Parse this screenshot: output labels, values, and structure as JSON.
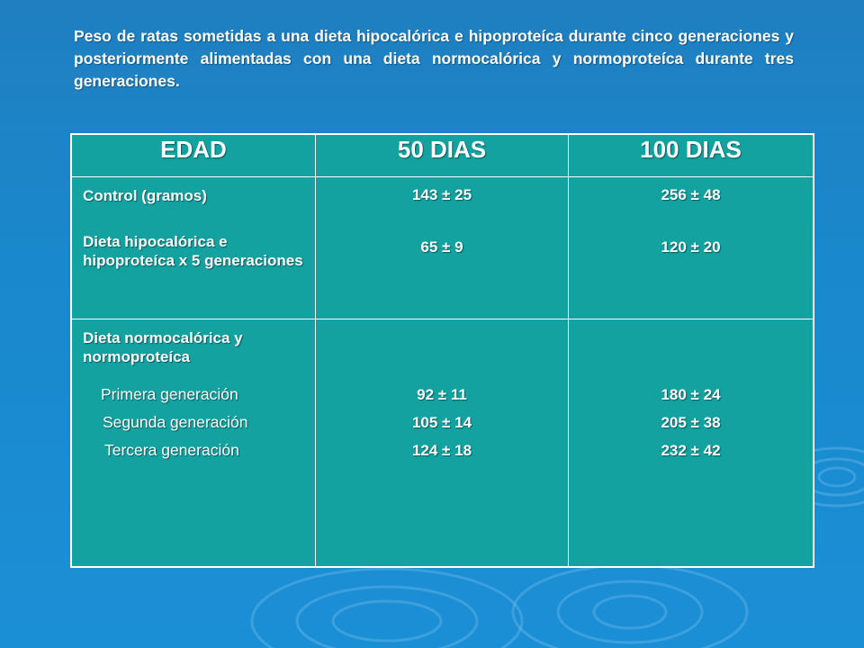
{
  "caption": "Peso de ratas sometidas a una dieta hipocalórica e hipoproteíca durante cinco generaciones y posteriormente alimentadas con una dieta normocalórica y normoproteíca durante tres generaciones.",
  "table": {
    "headers": [
      "EDAD",
      "50 DIAS",
      "100 DIAS"
    ],
    "row1": {
      "label_a": "Control (gramos)",
      "label_b": "Dieta hipocalórica e hipoproteíca x 5 generaciones",
      "d50": [
        "143 ± 25",
        "65 ± 9"
      ],
      "d100": [
        "256 ± 48",
        "120 ± 20"
      ]
    },
    "row2": {
      "title": "Dieta normocalórica y normoproteíca",
      "subs": [
        "Primera generación",
        "Segunda generación",
        "Tercera generación"
      ],
      "d50": [
        "92 ± 11",
        "105 ± 14",
        "124 ± 18"
      ],
      "d100": [
        "180 ± 24",
        "205 ± 38",
        "232 ± 42"
      ]
    }
  }
}
